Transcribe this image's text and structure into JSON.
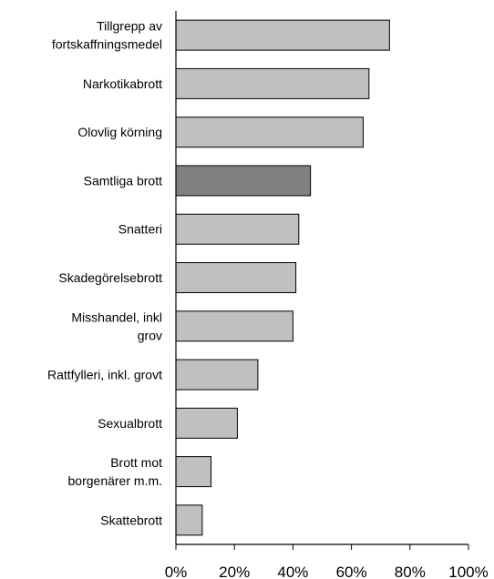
{
  "chart_data": {
    "type": "bar",
    "orientation": "horizontal",
    "categories": [
      "Tillgrepp av\nfortskaffningsmedel",
      "Narkotikabrott",
      "Olovlig körning",
      "Samtliga brott",
      "Snatteri",
      "Skadegörelsebrott",
      "Misshandel, inkl\ngrov",
      "Rattfylleri, inkl. grovt",
      "Sexualbrott",
      "Brott mot\nborgenärer m.m.",
      "Skattebrott"
    ],
    "values": [
      73,
      66,
      64,
      46,
      42,
      41,
      40,
      28,
      21,
      12,
      9
    ],
    "colors": [
      "#c0c0c0",
      "#c0c0c0",
      "#c0c0c0",
      "#808080",
      "#c0c0c0",
      "#c0c0c0",
      "#c0c0c0",
      "#c0c0c0",
      "#c0c0c0",
      "#c0c0c0",
      "#c0c0c0"
    ],
    "xlim": [
      0,
      100
    ],
    "xticks": [
      {
        "value": 0,
        "label": "0%"
      },
      {
        "value": 20,
        "label": "20%"
      },
      {
        "value": 40,
        "label": "40%"
      },
      {
        "value": 60,
        "label": "60%"
      },
      {
        "value": 80,
        "label": "80%"
      },
      {
        "value": 100,
        "label": "100%"
      }
    ],
    "grid": false
  }
}
